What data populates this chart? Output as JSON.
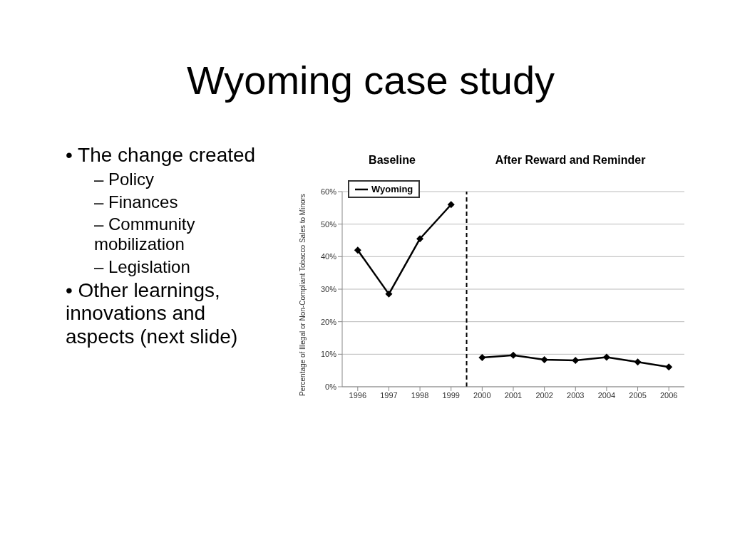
{
  "chart_data": {
    "type": "line",
    "title": "Wyoming case study",
    "ylabel": "Percentage of Illegal or Non-Compliant Tobacco Sales to Minors",
    "annotations": [
      "Baseline",
      "After Reward and Reminder",
      "• The change created",
      "– Policy",
      "– Finances",
      "– Community mobilization",
      "– Legislation",
      "• Other learnings, innovations and aspects (next slide)"
    ],
    "x": [
      1996,
      1997,
      1998,
      1999,
      2000,
      2001,
      2002,
      2003,
      2004,
      2005,
      2006
    ],
    "series": [
      {
        "name": "Wyoming",
        "color": "#000000",
        "values": [
          42,
          28.5,
          45.5,
          56,
          null,
          null,
          null,
          null,
          null,
          null,
          null
        ]
      },
      {
        "color": "#000000",
        "values": [
          null,
          null,
          null,
          null,
          9,
          9.7,
          8.3,
          8.1,
          9.1,
          7.6,
          6.1
        ]
      }
    ],
    "xlim": [
      1995.5,
      2006.5
    ],
    "xticks": [
      1996,
      1997,
      1998,
      1999,
      2000,
      2001,
      2002,
      2003,
      2004,
      2005,
      2006
    ],
    "ylim": [
      0,
      60
    ],
    "yticks": [
      {
        "value": 0,
        "label": "0%"
      },
      {
        "value": 10,
        "label": "10%"
      },
      {
        "value": 20,
        "label": "20%"
      },
      {
        "value": 30,
        "label": "30%"
      },
      {
        "value": 40,
        "label": "40%"
      },
      {
        "value": 50,
        "label": "50%"
      },
      {
        "value": 60,
        "label": "60%"
      }
    ],
    "ref_lines": [
      {
        "axis": "x",
        "value": 1999.5,
        "color": "#000000",
        "line_style": "dashed"
      }
    ],
    "grid": "y",
    "legend": "top left",
    "marker": "diamond",
    "line_style": "solid"
  }
}
